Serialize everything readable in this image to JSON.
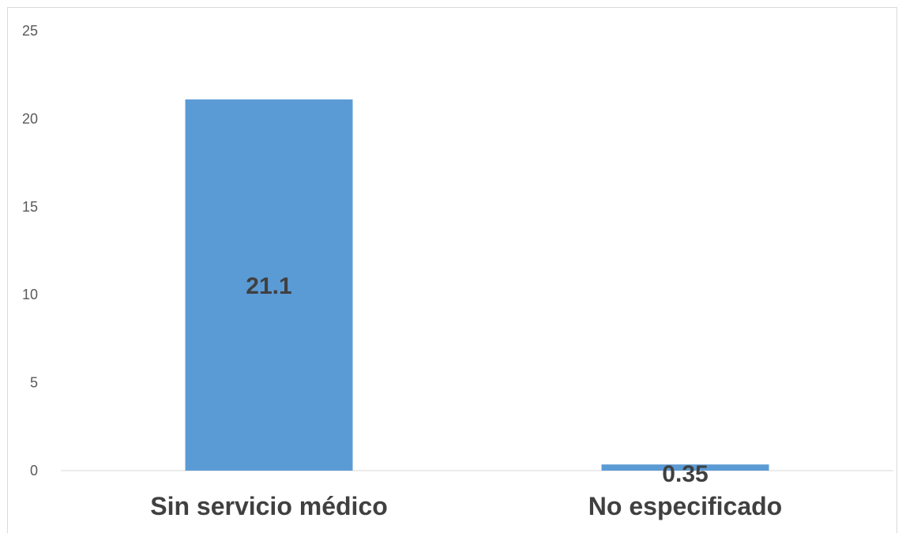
{
  "chart_data": {
    "type": "bar",
    "categories": [
      "Sin servicio médico",
      "No especificado"
    ],
    "values": [
      21.1,
      0.35
    ],
    "data_labels": [
      "21.1",
      "0.35"
    ],
    "title": "",
    "xlabel": "",
    "ylabel": "",
    "ylim": [
      0,
      25
    ],
    "yticks": [
      0,
      5,
      10,
      15,
      20,
      25
    ],
    "ytick_labels": [
      "0",
      "5",
      "10",
      "15",
      "20",
      "25"
    ],
    "grid": false,
    "legend": "none",
    "bar_color": "#5b9bd5",
    "axis_color": "#d9d9d9"
  }
}
